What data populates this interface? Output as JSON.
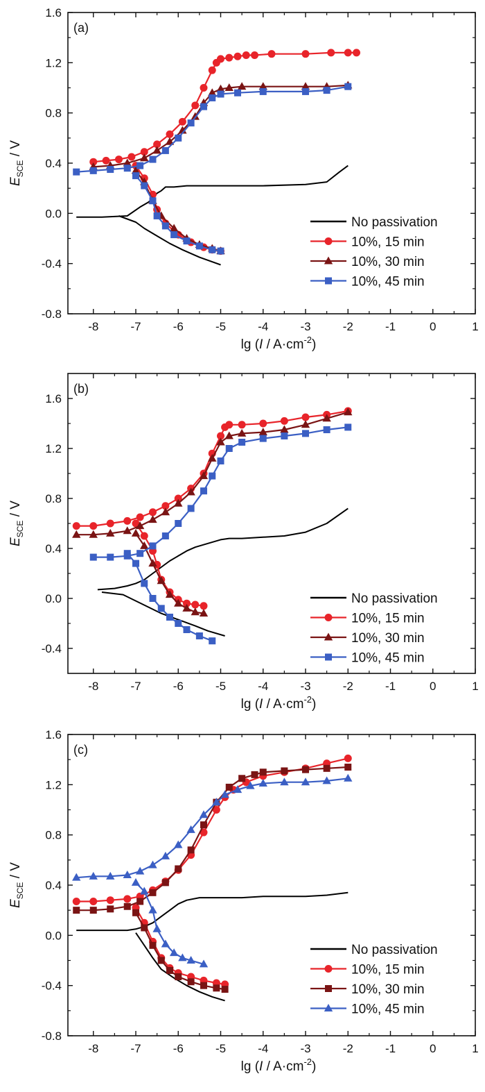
{
  "figure": {
    "description_free": true
  },
  "chart_data": [
    {
      "type": "line",
      "panel_label": "(a)",
      "xlabel": "lg (I / A·cm⁻²)",
      "ylabel": "E_SCE / V",
      "xlim": [
        -8.6,
        1.0
      ],
      "ylim": [
        -0.8,
        1.6
      ],
      "xticks": [
        -8,
        -7,
        -6,
        -5,
        -4,
        -3,
        -2,
        -1,
        0,
        1
      ],
      "yticks": [
        -0.8,
        -0.4,
        0.0,
        0.4,
        0.8,
        1.2,
        1.6
      ],
      "legend_position": "bottom-right",
      "series": [
        {
          "name": "No passivation",
          "color": "#000000",
          "marker": "none",
          "x": [
            -8.4,
            -7.8,
            -7.2,
            -6.9,
            -6.7,
            -6.6,
            -6.5,
            -6.4,
            -6.3,
            -6.1,
            -5.8,
            -5.3,
            -4.8,
            -4.0,
            -3.0,
            -2.5,
            -2.2,
            -2.0
          ],
          "y": [
            -0.03,
            -0.03,
            -0.02,
            0.05,
            0.09,
            0.12,
            0.16,
            0.18,
            0.21,
            0.21,
            0.22,
            0.22,
            0.22,
            0.22,
            0.23,
            0.25,
            0.33,
            0.38
          ]
        },
        {
          "name": "No passivation cathodic",
          "color": "#000000",
          "marker": "none",
          "x": [
            -7.4,
            -7.0,
            -6.8,
            -6.5,
            -6.2,
            -5.9,
            -5.5,
            -5.0
          ],
          "y": [
            -0.02,
            -0.07,
            -0.12,
            -0.18,
            -0.24,
            -0.29,
            -0.35,
            -0.41
          ]
        },
        {
          "name": "10%, 15 min",
          "color": "#e8242a",
          "marker": "circle",
          "x": [
            -8.0,
            -7.7,
            -7.4,
            -7.1,
            -6.8,
            -6.5,
            -6.2,
            -5.9,
            -5.6,
            -5.4,
            -5.2,
            -5.1,
            -5.0,
            -4.8,
            -4.6,
            -4.4,
            -4.2,
            -3.8,
            -3.0,
            -2.4,
            -2.0,
            -1.8
          ],
          "y": [
            0.41,
            0.42,
            0.43,
            0.45,
            0.49,
            0.55,
            0.63,
            0.73,
            0.86,
            1.0,
            1.14,
            1.2,
            1.23,
            1.24,
            1.25,
            1.26,
            1.26,
            1.27,
            1.27,
            1.28,
            1.28,
            1.28
          ]
        },
        {
          "name": "10%, 15 min cathodic",
          "color": "#e8242a",
          "marker": "circle",
          "x": [
            -7.0,
            -6.8,
            -6.6,
            -6.5,
            -6.3,
            -6.0,
            -5.7,
            -5.4,
            -5.2,
            -5.0
          ],
          "y": [
            0.38,
            0.28,
            0.15,
            0.03,
            -0.08,
            -0.17,
            -0.23,
            -0.27,
            -0.29,
            -0.3
          ]
        },
        {
          "name": "10%, 30 min",
          "color": "#7a1414",
          "marker": "triangle",
          "x": [
            -8.0,
            -7.6,
            -7.2,
            -6.8,
            -6.5,
            -6.2,
            -5.9,
            -5.6,
            -5.4,
            -5.2,
            -5.0,
            -4.8,
            -4.5,
            -4.0,
            -3.0,
            -2.5,
            -2.0
          ],
          "y": [
            0.37,
            0.38,
            0.4,
            0.44,
            0.5,
            0.57,
            0.66,
            0.77,
            0.88,
            0.96,
            0.99,
            1.0,
            1.01,
            1.01,
            1.01,
            1.01,
            1.02
          ]
        },
        {
          "name": "10%, 30 min cathodic",
          "color": "#7a1414",
          "marker": "triangle",
          "x": [
            -7.0,
            -6.8,
            -6.6,
            -6.4,
            -6.1,
            -5.8,
            -5.5,
            -5.2,
            -5.0
          ],
          "y": [
            0.34,
            0.25,
            0.1,
            -0.02,
            -0.12,
            -0.2,
            -0.25,
            -0.28,
            -0.3
          ]
        },
        {
          "name": "10%, 45 min",
          "color": "#3b5fc4",
          "marker": "square",
          "x": [
            -8.4,
            -8.0,
            -7.6,
            -7.2,
            -6.9,
            -6.6,
            -6.3,
            -6.0,
            -5.7,
            -5.4,
            -5.2,
            -5.0,
            -4.6,
            -4.0,
            -3.0,
            -2.5,
            -2.0
          ],
          "y": [
            0.33,
            0.34,
            0.35,
            0.36,
            0.38,
            0.43,
            0.5,
            0.6,
            0.72,
            0.85,
            0.92,
            0.95,
            0.96,
            0.97,
            0.97,
            0.98,
            1.01
          ]
        },
        {
          "name": "10%, 45 min cathodic",
          "color": "#3b5fc4",
          "marker": "square",
          "x": [
            -7.0,
            -6.8,
            -6.6,
            -6.5,
            -6.3,
            -6.1,
            -5.8,
            -5.5,
            -5.2,
            -5.0
          ],
          "y": [
            0.3,
            0.22,
            0.1,
            -0.02,
            -0.1,
            -0.17,
            -0.22,
            -0.26,
            -0.29,
            -0.3
          ]
        }
      ],
      "legend": [
        "No passivation",
        "10%, 15 min",
        "10%, 30 min",
        "10%, 45 min"
      ]
    },
    {
      "type": "line",
      "panel_label": "(b)",
      "xlabel": "lg (I / A·cm⁻²)",
      "ylabel": "E_SCE / V",
      "xlim": [
        -8.6,
        1.0
      ],
      "ylim": [
        -0.6,
        1.8
      ],
      "xticks": [
        -8,
        -7,
        -6,
        -5,
        -4,
        -3,
        -2,
        -1,
        0,
        1
      ],
      "yticks": [
        -0.4,
        0.0,
        0.4,
        0.8,
        1.2,
        1.6
      ],
      "legend_position": "bottom-right",
      "series": [
        {
          "name": "No passivation",
          "color": "#000000",
          "marker": "none",
          "x": [
            -7.9,
            -7.5,
            -7.2,
            -7.0,
            -6.8,
            -6.6,
            -6.4,
            -6.2,
            -6.0,
            -5.8,
            -5.6,
            -5.3,
            -5.0,
            -4.8,
            -4.5,
            -4.0,
            -3.5,
            -3.0,
            -2.5,
            -2.0
          ],
          "y": [
            0.07,
            0.08,
            0.1,
            0.12,
            0.15,
            0.2,
            0.25,
            0.3,
            0.34,
            0.38,
            0.41,
            0.44,
            0.47,
            0.48,
            0.48,
            0.49,
            0.5,
            0.53,
            0.6,
            0.72
          ]
        },
        {
          "name": "No passivation cathodic",
          "color": "#000000",
          "marker": "none",
          "x": [
            -7.8,
            -7.3,
            -7.0,
            -6.7,
            -6.4,
            -6.0,
            -5.6,
            -5.3,
            -4.9
          ],
          "y": [
            0.05,
            0.03,
            -0.02,
            -0.07,
            -0.12,
            -0.17,
            -0.22,
            -0.26,
            -0.3
          ]
        },
        {
          "name": "10%, 15 min",
          "color": "#e8242a",
          "marker": "circle",
          "x": [
            -8.4,
            -8.0,
            -7.6,
            -7.2,
            -6.9,
            -6.6,
            -6.3,
            -6.0,
            -5.7,
            -5.4,
            -5.2,
            -5.0,
            -4.9,
            -4.8,
            -4.5,
            -4.0,
            -3.5,
            -3.0,
            -2.5,
            -2.0
          ],
          "y": [
            0.58,
            0.58,
            0.6,
            0.62,
            0.65,
            0.69,
            0.74,
            0.8,
            0.88,
            1.0,
            1.16,
            1.3,
            1.37,
            1.39,
            1.39,
            1.4,
            1.42,
            1.45,
            1.47,
            1.5
          ]
        },
        {
          "name": "10%, 15 min cathodic",
          "color": "#e8242a",
          "marker": "circle",
          "x": [
            -7.0,
            -6.8,
            -6.6,
            -6.5,
            -6.4,
            -6.2,
            -6.0,
            -5.8,
            -5.6,
            -5.4
          ],
          "y": [
            0.6,
            0.5,
            0.38,
            0.27,
            0.15,
            0.05,
            -0.01,
            -0.04,
            -0.05,
            -0.06
          ]
        },
        {
          "name": "10%, 30 min",
          "color": "#7a1414",
          "marker": "triangle",
          "x": [
            -8.4,
            -8.0,
            -7.6,
            -7.2,
            -6.9,
            -6.6,
            -6.3,
            -6.0,
            -5.7,
            -5.4,
            -5.2,
            -5.0,
            -4.8,
            -4.5,
            -4.0,
            -3.5,
            -3.0,
            -2.5,
            -2.0
          ],
          "y": [
            0.51,
            0.51,
            0.52,
            0.54,
            0.58,
            0.63,
            0.69,
            0.76,
            0.85,
            0.98,
            1.12,
            1.25,
            1.3,
            1.32,
            1.33,
            1.35,
            1.39,
            1.44,
            1.49
          ]
        },
        {
          "name": "10%, 30 min cathodic",
          "color": "#7a1414",
          "marker": "triangle",
          "x": [
            -7.0,
            -6.8,
            -6.6,
            -6.4,
            -6.2,
            -6.0,
            -5.8,
            -5.6,
            -5.4
          ],
          "y": [
            0.52,
            0.42,
            0.28,
            0.14,
            0.03,
            -0.04,
            -0.08,
            -0.11,
            -0.12
          ]
        },
        {
          "name": "10%, 45 min",
          "color": "#3b5fc4",
          "marker": "square",
          "x": [
            -8.0,
            -7.6,
            -7.2,
            -6.9,
            -6.6,
            -6.3,
            -6.0,
            -5.7,
            -5.4,
            -5.2,
            -5.0,
            -4.8,
            -4.5,
            -4.0,
            -3.5,
            -3.0,
            -2.5,
            -2.0
          ],
          "y": [
            0.33,
            0.33,
            0.34,
            0.36,
            0.42,
            0.5,
            0.6,
            0.72,
            0.86,
            0.98,
            1.1,
            1.2,
            1.25,
            1.28,
            1.3,
            1.32,
            1.35,
            1.37
          ]
        },
        {
          "name": "10%, 45 min cathodic",
          "color": "#3b5fc4",
          "marker": "square",
          "x": [
            -7.2,
            -7.0,
            -6.8,
            -6.6,
            -6.4,
            -6.2,
            -6.0,
            -5.8,
            -5.5,
            -5.2
          ],
          "y": [
            0.36,
            0.28,
            0.12,
            0.0,
            -0.08,
            -0.15,
            -0.2,
            -0.25,
            -0.3,
            -0.34
          ]
        }
      ],
      "legend": [
        "No passivation",
        "10%, 15 min",
        "10%, 30 min",
        "10%, 45 min"
      ]
    },
    {
      "type": "line",
      "panel_label": "(c)",
      "xlabel": "lg (I / A·cm⁻²)",
      "ylabel": "E_SCE / V",
      "xlim": [
        -8.6,
        1.0
      ],
      "ylim": [
        -0.8,
        1.6
      ],
      "xticks": [
        -8,
        -7,
        -6,
        -5,
        -4,
        -3,
        -2,
        -1,
        0,
        1
      ],
      "yticks": [
        -0.8,
        -0.4,
        0.0,
        0.4,
        0.8,
        1.2,
        1.6
      ],
      "legend_position": "bottom-right",
      "series": [
        {
          "name": "No passivation",
          "color": "#000000",
          "marker": "none",
          "x": [
            -8.4,
            -8.0,
            -7.6,
            -7.2,
            -7.0,
            -6.8,
            -6.6,
            -6.4,
            -6.2,
            -6.0,
            -5.8,
            -5.5,
            -5.0,
            -4.5,
            -4.0,
            -3.0,
            -2.5,
            -2.0
          ],
          "y": [
            0.04,
            0.04,
            0.04,
            0.04,
            0.05,
            0.07,
            0.1,
            0.15,
            0.2,
            0.25,
            0.28,
            0.3,
            0.3,
            0.3,
            0.31,
            0.31,
            0.32,
            0.34
          ]
        },
        {
          "name": "No passivation cathodic",
          "color": "#000000",
          "marker": "none",
          "x": [
            -7.0,
            -6.8,
            -6.6,
            -6.4,
            -6.1,
            -5.8,
            -5.5,
            -5.2,
            -4.9
          ],
          "y": [
            0.02,
            -0.08,
            -0.18,
            -0.27,
            -0.34,
            -0.4,
            -0.45,
            -0.49,
            -0.52
          ]
        },
        {
          "name": "10%, 15 min",
          "color": "#e8242a",
          "marker": "circle",
          "x": [
            -8.4,
            -8.0,
            -7.6,
            -7.2,
            -6.9,
            -6.6,
            -6.3,
            -6.0,
            -5.7,
            -5.4,
            -5.1,
            -4.9,
            -4.7,
            -4.4,
            -4.0,
            -3.5,
            -3.0,
            -2.5,
            -2.0
          ],
          "y": [
            0.27,
            0.27,
            0.28,
            0.29,
            0.31,
            0.36,
            0.43,
            0.52,
            0.64,
            0.82,
            1.0,
            1.1,
            1.16,
            1.22,
            1.27,
            1.3,
            1.33,
            1.37,
            1.41
          ]
        },
        {
          "name": "10%, 15 min cathodic",
          "color": "#e8242a",
          "marker": "circle",
          "x": [
            -7.0,
            -6.8,
            -6.6,
            -6.4,
            -6.2,
            -6.0,
            -5.7,
            -5.4,
            -5.1,
            -4.9
          ],
          "y": [
            0.22,
            0.1,
            -0.05,
            -0.18,
            -0.26,
            -0.3,
            -0.33,
            -0.36,
            -0.38,
            -0.39
          ]
        },
        {
          "name": "10%, 30 min",
          "color": "#7a1414",
          "marker": "square",
          "x": [
            -8.4,
            -8.0,
            -7.6,
            -7.2,
            -6.9,
            -6.6,
            -6.3,
            -6.0,
            -5.7,
            -5.4,
            -5.1,
            -4.8,
            -4.5,
            -4.2,
            -4.0,
            -3.5,
            -3.0,
            -2.5,
            -2.0
          ],
          "y": [
            0.2,
            0.2,
            0.21,
            0.23,
            0.27,
            0.34,
            0.42,
            0.53,
            0.68,
            0.88,
            1.06,
            1.18,
            1.25,
            1.28,
            1.3,
            1.31,
            1.32,
            1.33,
            1.34
          ]
        },
        {
          "name": "10%, 30 min cathodic",
          "color": "#7a1414",
          "marker": "square",
          "x": [
            -7.0,
            -6.8,
            -6.6,
            -6.4,
            -6.2,
            -6.0,
            -5.7,
            -5.4,
            -5.1,
            -4.9
          ],
          "y": [
            0.18,
            0.06,
            -0.08,
            -0.2,
            -0.28,
            -0.33,
            -0.37,
            -0.4,
            -0.42,
            -0.43
          ]
        },
        {
          "name": "10%, 45 min",
          "color": "#3b5fc4",
          "marker": "triangle",
          "x": [
            -8.4,
            -8.0,
            -7.6,
            -7.2,
            -6.9,
            -6.6,
            -6.3,
            -6.0,
            -5.7,
            -5.4,
            -5.1,
            -4.9,
            -4.6,
            -4.3,
            -4.0,
            -3.5,
            -3.0,
            -2.5,
            -2.0
          ],
          "y": [
            0.46,
            0.47,
            0.47,
            0.48,
            0.51,
            0.56,
            0.63,
            0.72,
            0.84,
            0.96,
            1.06,
            1.12,
            1.16,
            1.19,
            1.21,
            1.22,
            1.22,
            1.23,
            1.25
          ]
        },
        {
          "name": "10%, 45 min cathodic",
          "color": "#3b5fc4",
          "marker": "triangle",
          "x": [
            -7.0,
            -6.8,
            -6.6,
            -6.5,
            -6.3,
            -6.1,
            -5.9,
            -5.7,
            -5.4
          ],
          "y": [
            0.42,
            0.35,
            0.2,
            0.05,
            -0.07,
            -0.14,
            -0.18,
            -0.2,
            -0.23
          ]
        }
      ],
      "legend": [
        "No passivation",
        "10%, 15 min",
        "10%, 30 min",
        "10%, 45 min"
      ]
    }
  ]
}
